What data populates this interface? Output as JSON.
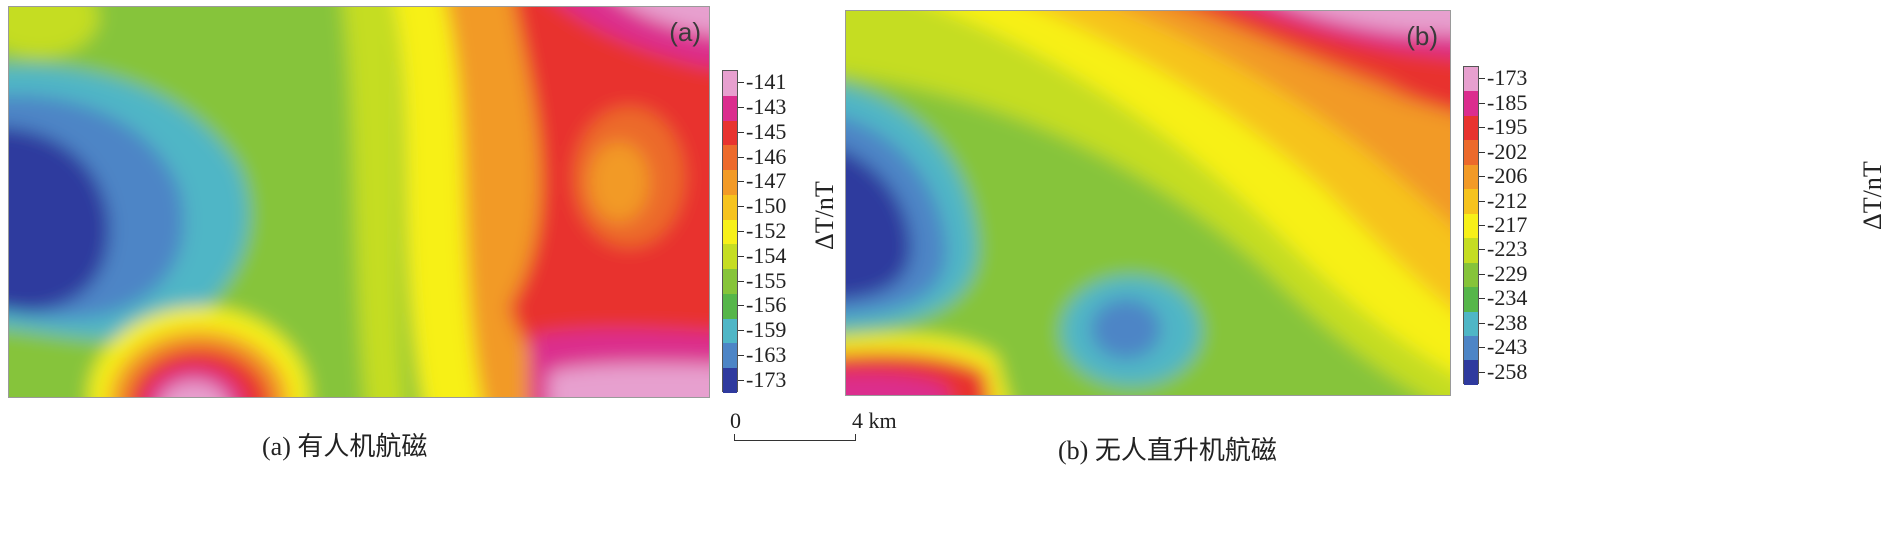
{
  "panels": [
    {
      "id": "a",
      "tag": "(a)",
      "caption": "(a) 有人机航磁",
      "colorbar_ticks": [
        "-141",
        "-143",
        "-145",
        "-146",
        "-147",
        "-150",
        "-152",
        "-154",
        "-155",
        "-156",
        "-159",
        "-163",
        "-173"
      ],
      "colorbar_title": "ΔT/nT"
    },
    {
      "id": "b",
      "tag": "(b)",
      "caption": "(b) 无人直升机航磁",
      "colorbar_ticks": [
        "-173",
        "-185",
        "-195",
        "-202",
        "-206",
        "-212",
        "-217",
        "-223",
        "-229",
        "-234",
        "-238",
        "-243",
        "-258"
      ],
      "colorbar_title": "ΔT/nT"
    }
  ],
  "scalebar": {
    "start": "0",
    "end": "4 km"
  },
  "colors": [
    "#e7a0cf",
    "#db2d8e",
    "#e8332f",
    "#ec6a2c",
    "#f29a27",
    "#f6c31e",
    "#f7f019",
    "#c5dd22",
    "#86c43a",
    "#56b64a",
    "#4fb6c6",
    "#4d85c6",
    "#2f3a9e"
  ],
  "chart_data": [
    {
      "type": "heatmap",
      "title": "(a) 有人机航磁",
      "colorbar_label": "ΔT/nT",
      "colorbar_levels": [
        -141,
        -143,
        -145,
        -146,
        -147,
        -150,
        -152,
        -154,
        -155,
        -156,
        -159,
        -163,
        -173
      ],
      "range": [
        -173,
        -141
      ]
    },
    {
      "type": "heatmap",
      "title": "(b) 无人直升机航磁",
      "colorbar_label": "ΔT/nT",
      "colorbar_levels": [
        -173,
        -185,
        -195,
        -202,
        -206,
        -212,
        -217,
        -223,
        -229,
        -234,
        -238,
        -243,
        -258
      ],
      "range": [
        -258,
        -173
      ]
    }
  ]
}
